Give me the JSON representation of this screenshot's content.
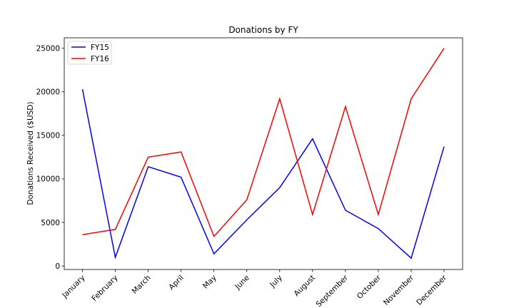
{
  "chart_data": {
    "type": "line",
    "title": "Donations by FY",
    "xlabel": "",
    "ylabel": "Donations Received ($USD)",
    "categories": [
      "January",
      "February",
      "March",
      "April",
      "May",
      "June",
      "July",
      "August",
      "September",
      "October",
      "November",
      "December"
    ],
    "yticks": [
      0,
      5000,
      10000,
      15000,
      20000,
      25000
    ],
    "ylim": [
      -400,
      26200
    ],
    "grid": false,
    "legend": "top-left",
    "series": [
      {
        "name": "FY15",
        "color": "#0000ff",
        "values": [
          20300,
          1000,
          11400,
          10200,
          1400,
          5300,
          9000,
          14600,
          6400,
          4300,
          900,
          13700
        ]
      },
      {
        "name": "FY16",
        "color": "#ff0000",
        "values": [
          3600,
          4200,
          12500,
          13100,
          3400,
          7600,
          19200,
          5900,
          18300,
          5900,
          19200,
          25000
        ]
      }
    ]
  }
}
